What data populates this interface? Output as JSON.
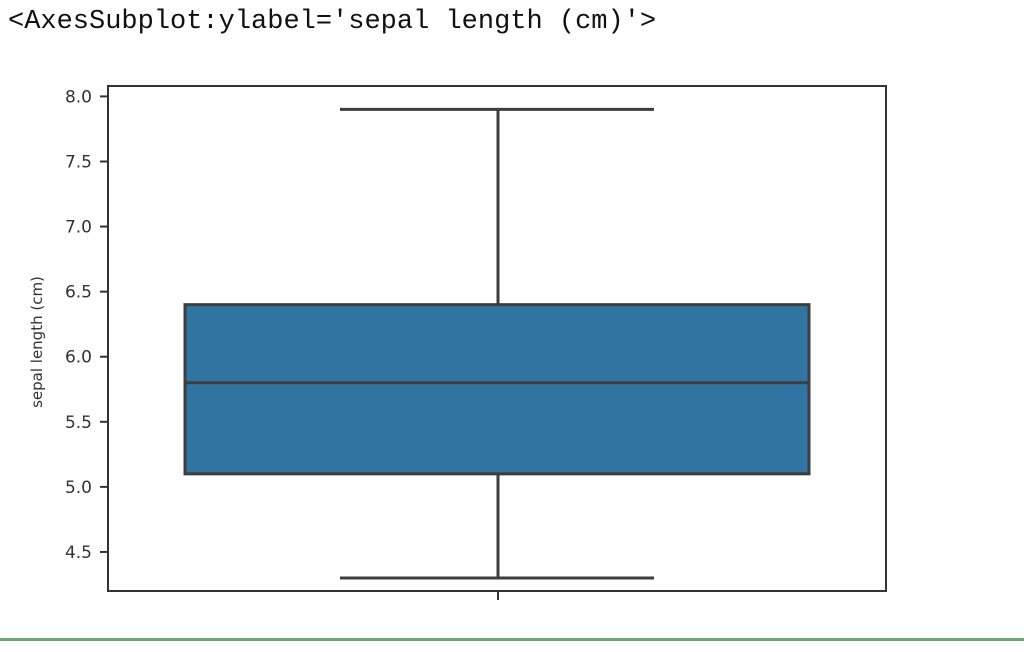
{
  "output_text": "<AxesSubplot:ylabel='sepal length (cm)'>",
  "chart_data": {
    "type": "box",
    "ylabel": "sepal length (cm)",
    "ylim": [
      4.2,
      8.08
    ],
    "yticks": [
      4.5,
      5.0,
      5.5,
      6.0,
      6.5,
      7.0,
      7.5,
      8.0
    ],
    "ytick_labels": [
      "4.5",
      "5.0",
      "5.5",
      "6.0",
      "6.5",
      "7.0",
      "7.5",
      "8.0"
    ],
    "box": {
      "min": 4.3,
      "q1": 5.1,
      "median": 5.8,
      "q3": 6.4,
      "max": 7.9
    },
    "box_color": "#3274a1",
    "line_color": "#3d3d3d"
  }
}
